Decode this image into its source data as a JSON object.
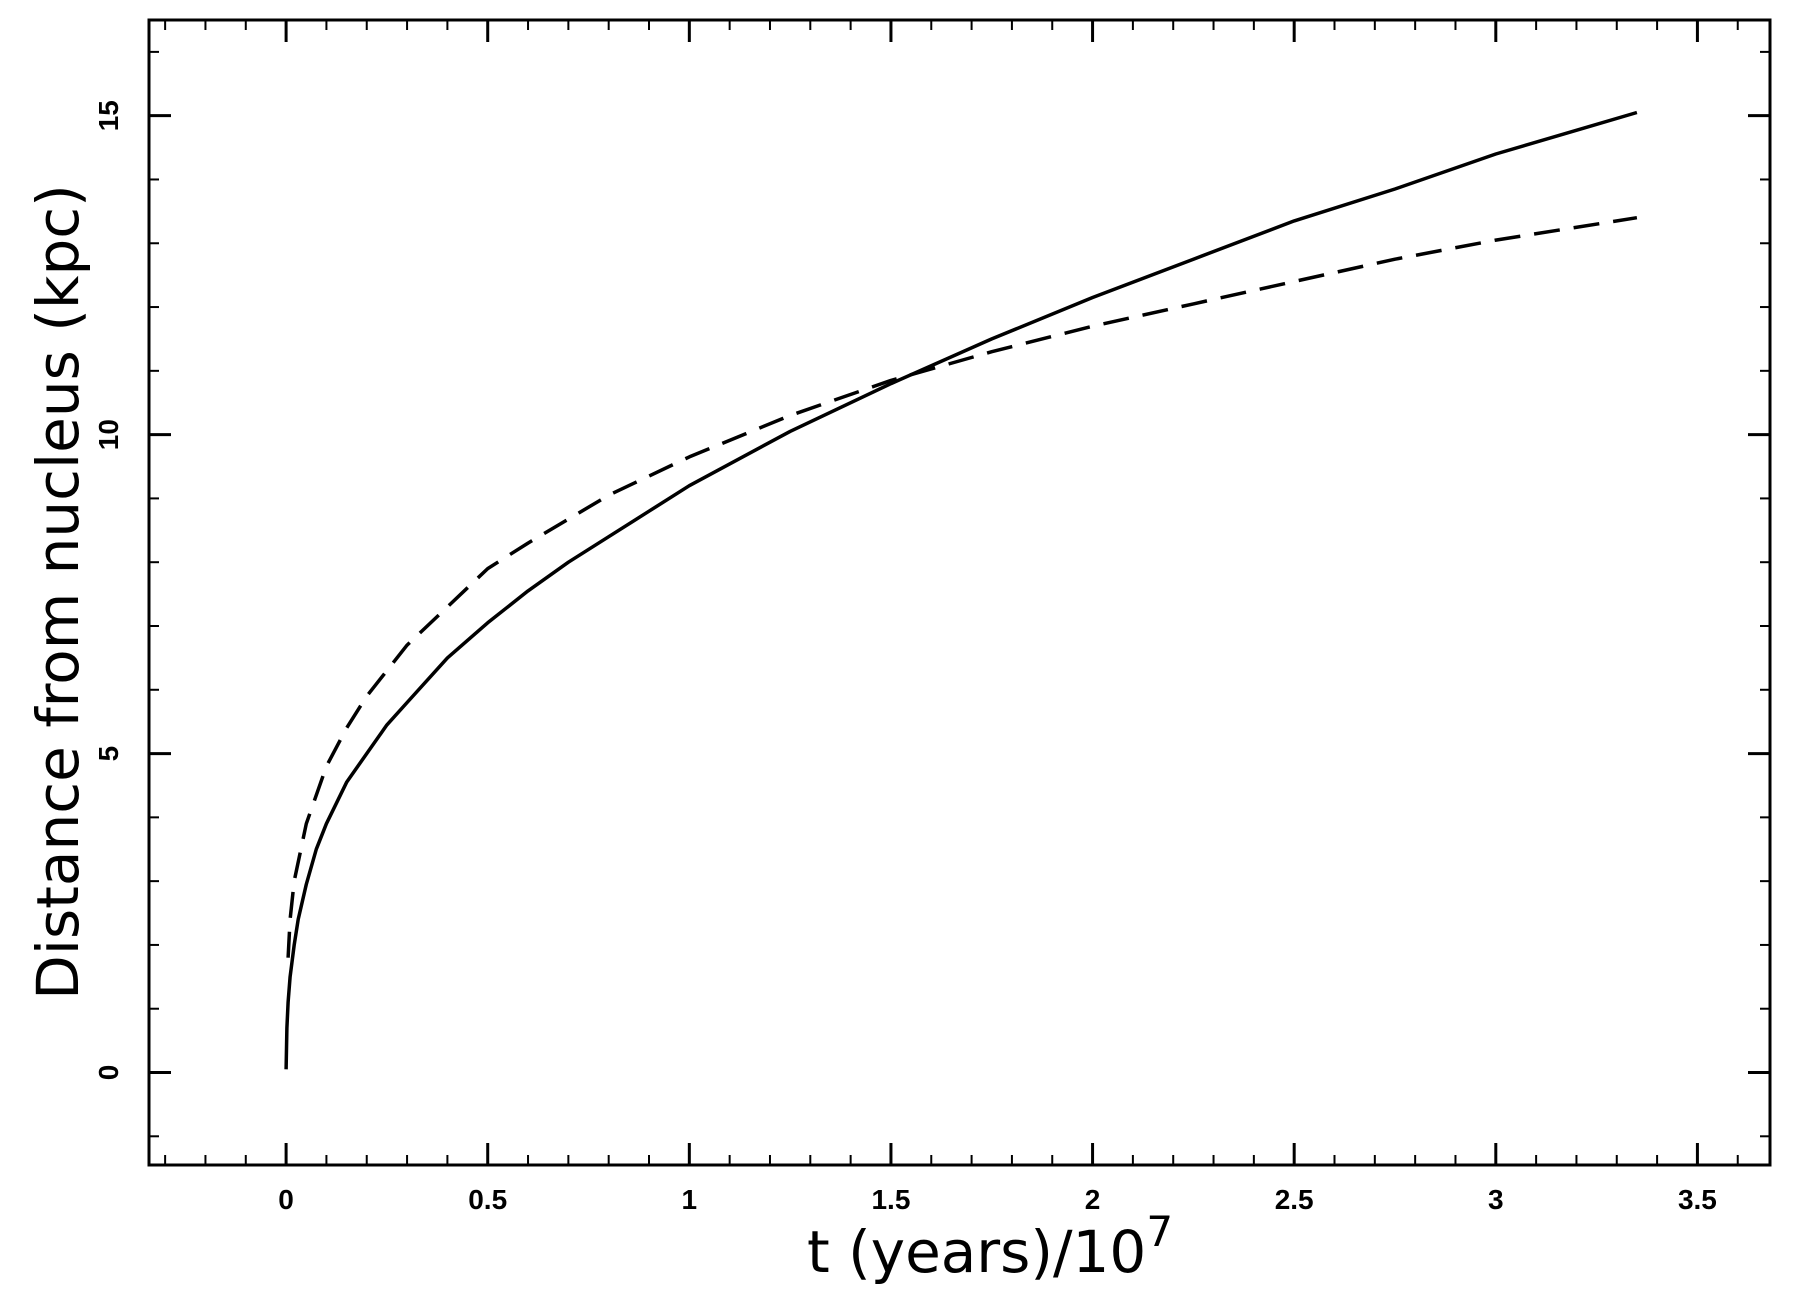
{
  "chart_data": {
    "type": "line",
    "xlabel": "t (years)/10",
    "xlabel_sup": "7",
    "ylabel": "Distance from nucleus (kpc)",
    "xlim": [
      -0.34,
      3.68
    ],
    "ylim": [
      -1.45,
      16.5
    ],
    "x_ticks": [
      0,
      0.5,
      1,
      1.5,
      2,
      2.5,
      3,
      3.5
    ],
    "x_tick_labels": [
      "0",
      "0.5",
      "1",
      "1.5",
      "2",
      "2.5",
      "3",
      "3.5"
    ],
    "y_ticks": [
      0,
      5,
      10,
      15
    ],
    "y_tick_labels": [
      "0",
      "5",
      "10",
      "15"
    ],
    "x_minor_step": 0.1,
    "y_minor_step": 1,
    "grid": false,
    "series": [
      {
        "style": "solid",
        "color": "#000000",
        "x": [
          0,
          0.002,
          0.005,
          0.01,
          0.02,
          0.03,
          0.05,
          0.075,
          0.1,
          0.15,
          0.2,
          0.25,
          0.3,
          0.4,
          0.5,
          0.6,
          0.7,
          0.8,
          0.9,
          1.0,
          1.25,
          1.5,
          1.75,
          2.0,
          2.25,
          2.5,
          2.75,
          3.0,
          3.35
        ],
        "y": [
          0.05,
          0.7,
          1.1,
          1.5,
          2.0,
          2.4,
          2.95,
          3.5,
          3.9,
          4.55,
          5.0,
          5.45,
          5.8,
          6.5,
          7.05,
          7.55,
          8.0,
          8.4,
          8.8,
          9.2,
          10.05,
          10.8,
          11.5,
          12.15,
          12.75,
          13.35,
          13.85,
          14.4,
          15.05
        ]
      },
      {
        "style": "dashed",
        "color": "#000000",
        "x": [
          0.005,
          0.01,
          0.02,
          0.05,
          0.1,
          0.15,
          0.2,
          0.3,
          0.4,
          0.5,
          0.6,
          0.8,
          1.0,
          1.25,
          1.5,
          1.75,
          2.0,
          2.25,
          2.5,
          2.75,
          3.0,
          3.35
        ],
        "y": [
          1.8,
          2.4,
          3.0,
          3.9,
          4.8,
          5.4,
          5.9,
          6.7,
          7.3,
          7.9,
          8.3,
          9.05,
          9.65,
          10.3,
          10.85,
          11.3,
          11.7,
          12.05,
          12.4,
          12.75,
          13.05,
          13.4
        ]
      }
    ]
  }
}
